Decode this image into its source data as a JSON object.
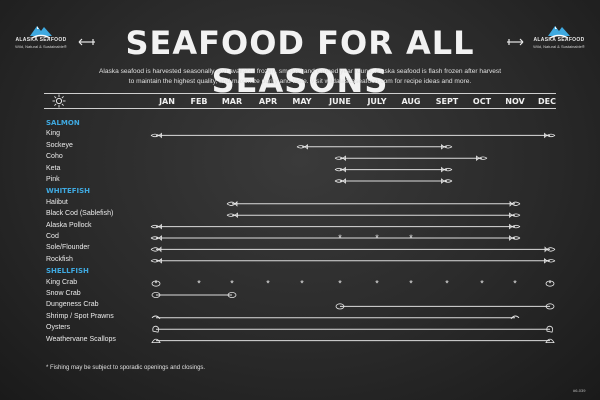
{
  "brand": {
    "name": "ALASKA SEAFOOD",
    "tagline": "Wild, Natural & Sustainable®",
    "blue": "#3fa9e0"
  },
  "title": "SEAFOOD FOR ALL SEASONS",
  "intro_line1": "Alaska seafood is harvested seasonally and available frozen, smoked and canned year round. Alaska seafood is flash frozen after harvest",
  "intro_line2": "to maintain the highest quality, and maximize purity and taste. Visit wildalaskaseafood.com for recipe ideas and more.",
  "months": [
    "JAN",
    "FEB",
    "MAR",
    "APR",
    "MAY",
    "JUNE",
    "JULY",
    "AUG",
    "SEPT",
    "OCT",
    "NOV",
    "DEC"
  ],
  "groups": [
    {
      "name": "SALMON",
      "items": [
        {
          "name": "King",
          "start": 1,
          "end": 12,
          "icon": "fish"
        },
        {
          "name": "Sockeye",
          "start": 5,
          "end": 9,
          "icon": "fish"
        },
        {
          "name": "Coho",
          "start": 6,
          "end": 10,
          "icon": "fish"
        },
        {
          "name": "Keta",
          "start": 6,
          "end": 9,
          "icon": "fish"
        },
        {
          "name": "Pink",
          "start": 6,
          "end": 9,
          "icon": "fish"
        }
      ]
    },
    {
      "name": "WHITEFISH",
      "items": [
        {
          "name": "Halibut",
          "start": 3,
          "end": 11,
          "icon": "flatfish"
        },
        {
          "name": "Black Cod (Sablefish)",
          "start": 3,
          "end": 11,
          "icon": "fish"
        },
        {
          "name": "Alaska Pollock",
          "start": 1,
          "end": 11,
          "icon": "fish"
        },
        {
          "name": "Cod",
          "start": 1,
          "end": 11,
          "icon": "fish",
          "sporadic_months": [
            6,
            7,
            8
          ]
        },
        {
          "name": "Sole/Flounder",
          "start": 1,
          "end": 12,
          "icon": "flatfish"
        },
        {
          "name": "Rockfish",
          "start": 1,
          "end": 12,
          "icon": "fish"
        }
      ]
    },
    {
      "name": "SHELLFISH",
      "items": [
        {
          "name": "King Crab",
          "start": 1,
          "end": 12,
          "icon": "crab",
          "dotted": true
        },
        {
          "name": "Snow Crab",
          "start": 1,
          "end": 3,
          "icon": "crab"
        },
        {
          "name": "Dungeness Crab",
          "start": 6,
          "end": 12,
          "icon": "crab"
        },
        {
          "name": "Shrimp / Spot Prawns",
          "start": 1,
          "end": 11,
          "icon": "shrimp"
        },
        {
          "name": "Oysters",
          "start": 1,
          "end": 12,
          "icon": "oyster"
        },
        {
          "name": "Weathervane Scallops",
          "start": 1,
          "end": 12,
          "icon": "scallop"
        }
      ]
    }
  ],
  "footnote": "* Fishing may be subject to sporadic openings and closings.",
  "code": "#6-039"
}
